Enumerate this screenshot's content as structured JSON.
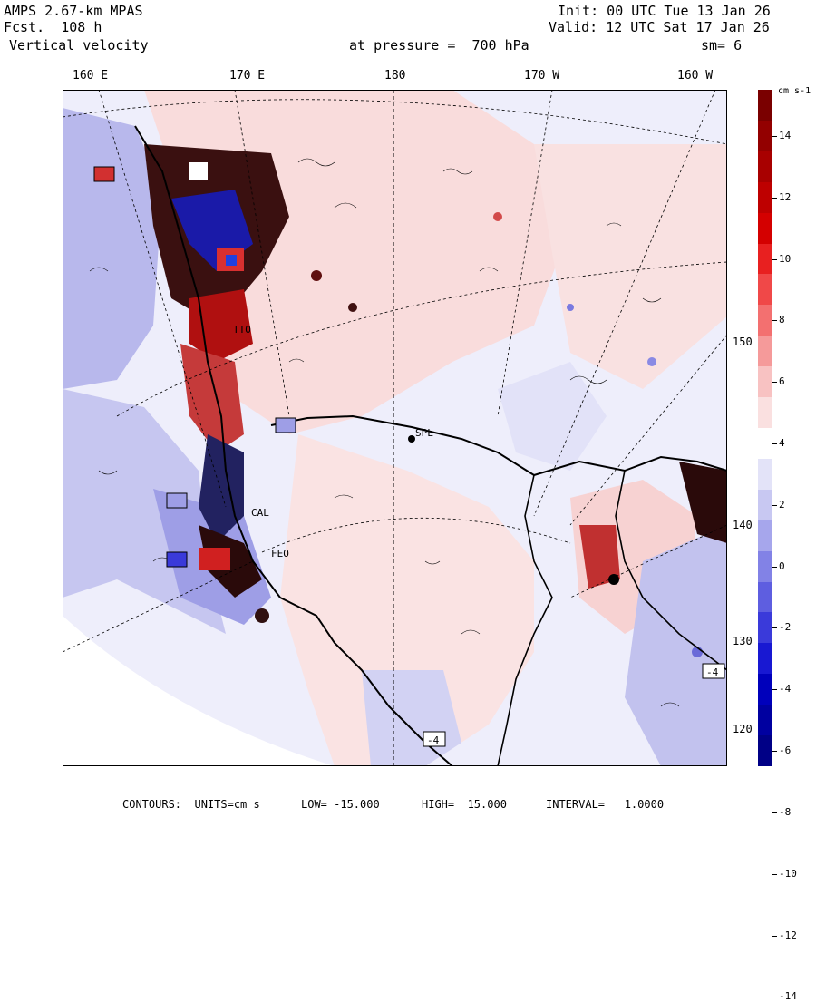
{
  "header": {
    "model": "AMPS 2.67-km MPAS",
    "forecast": "Fcst.  108 h",
    "variable": "Vertical velocity",
    "init": "Init: 00 UTC Tue 13 Jan 26",
    "valid": "Valid: 12 UTC Sat 17 Jan 26",
    "pressure": "at pressure =  700 hPa",
    "smoothing": "sm= 6"
  },
  "longitude_labels": [
    "160 E",
    "170 E",
    "180",
    "170 W",
    "160 W"
  ],
  "right_axis_labels": [
    "150 W",
    "140 W",
    "130 W",
    "120 W"
  ],
  "map": {
    "station_label": "SPL",
    "box_labels": [
      "-4",
      "-4"
    ],
    "other_labels": [
      "TTO",
      "CAL",
      "FEO"
    ]
  },
  "colorbar": {
    "unit": "cm s-1",
    "tick_labels": [
      "14",
      "12",
      "10",
      "8",
      "6",
      "4",
      "2",
      "0",
      "-2",
      "-4",
      "-6",
      "-8",
      "-10",
      "-12",
      "-14"
    ],
    "colors": [
      "#7a0000",
      "#930000",
      "#a80000",
      "#be0000",
      "#d40000",
      "#e82020",
      "#f04848",
      "#f37070",
      "#f59a9a",
      "#f8c2c2",
      "#fae0e0",
      "#ffffff",
      "#e3e3f8",
      "#c8c8f2",
      "#a6a6ec",
      "#8282e6",
      "#5e5ee0",
      "#3a3ada",
      "#1818d2",
      "#0000bb",
      "#0000a0",
      "#000086"
    ]
  },
  "footer": {
    "contours": "CONTOURS:  UNITS=cm s",
    "low": "LOW= -15.000",
    "high": "HIGH=  15.000",
    "interval": "INTERVAL=   1.0000"
  },
  "colors": {
    "positive": "#f7d6d6",
    "negative": "#dcdcf6",
    "strong_positive": "#d20000",
    "strong_negative": "#0000c8"
  }
}
